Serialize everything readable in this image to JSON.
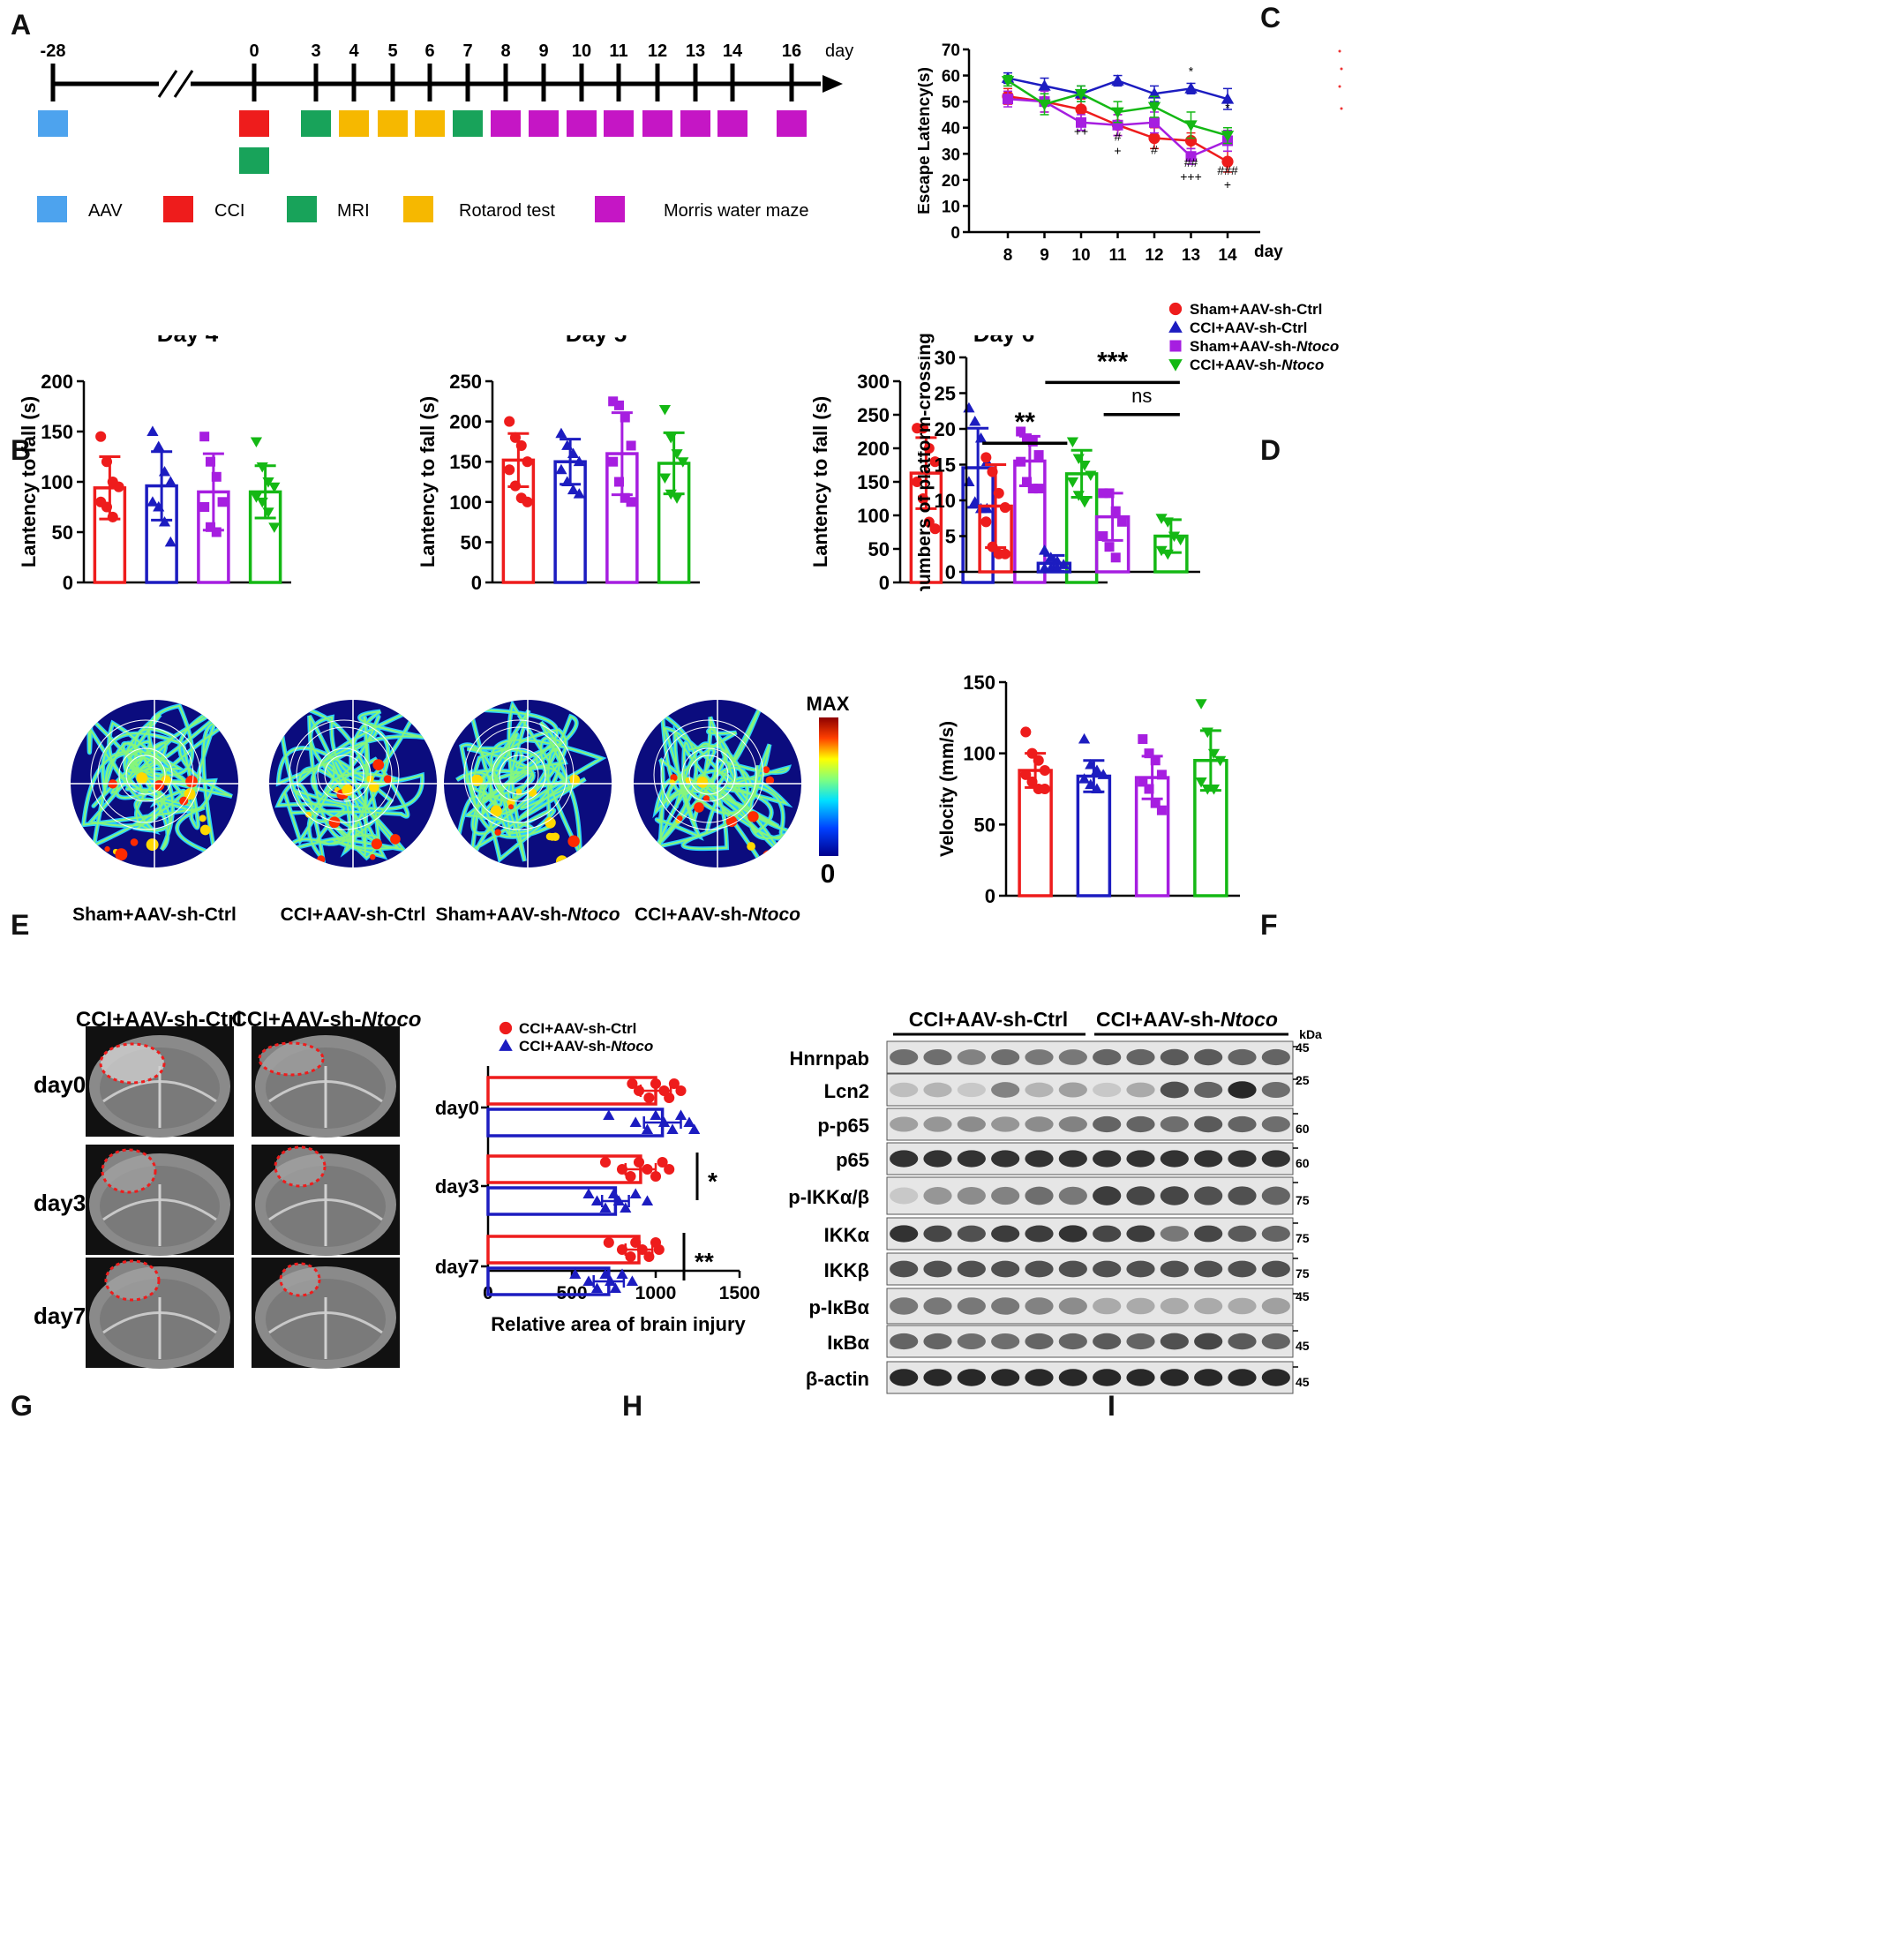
{
  "panels": {
    "A": {
      "label": "A",
      "unit": "day",
      "ticks": [
        "-28",
        "0",
        "3",
        "4",
        "5",
        "6",
        "7",
        "8",
        "9",
        "10",
        "11",
        "12",
        "13",
        "14",
        "16"
      ],
      "legend": [
        {
          "name": "AAV",
          "color": "#4da3ee"
        },
        {
          "name": "CCI",
          "color": "#ee1c1c"
        },
        {
          "name": "MRI",
          "color": "#18a35a"
        },
        {
          "name": "Rotarod test",
          "color": "#f6b800"
        },
        {
          "name": "Morris water maze",
          "color": "#c516c5"
        }
      ],
      "events": [
        {
          "day": "-28",
          "color": "#4da3ee"
        },
        {
          "day": "0",
          "color": "#ee1c1c"
        },
        {
          "day": "0",
          "color": "#18a35a",
          "row": 2
        },
        {
          "day": "3",
          "color": "#18a35a"
        },
        {
          "day": "4",
          "color": "#f6b800"
        },
        {
          "day": "5",
          "color": "#f6b800"
        },
        {
          "day": "6",
          "color": "#f6b800"
        },
        {
          "day": "7",
          "color": "#18a35a"
        },
        {
          "day": "8",
          "color": "#c516c5"
        },
        {
          "day": "9",
          "color": "#c516c5"
        },
        {
          "day": "10",
          "color": "#c516c5"
        },
        {
          "day": "11",
          "color": "#c516c5"
        },
        {
          "day": "12",
          "color": "#c516c5"
        },
        {
          "day": "13",
          "color": "#c516c5"
        },
        {
          "day": "14",
          "color": "#c516c5"
        },
        {
          "day": "16",
          "color": "#c516c5"
        }
      ]
    },
    "B": {
      "label": "B"
    },
    "C": {
      "label": "C"
    },
    "D": {
      "label": "D"
    },
    "E": {
      "label": "E",
      "scale_max": "MAX",
      "scale_min": "0",
      "groups": [
        "Sham+AAV-sh-Ctrl",
        "CCI+AAV-sh-Ctrl",
        "Sham+AAV-sh-",
        "CCI+AAV-sh-"
      ],
      "italic_suffix": [
        "",
        "",
        "Ntoco",
        "Ntoco"
      ]
    },
    "F": {
      "label": "F"
    },
    "G": {
      "label": "G",
      "col_headers": [
        "CCI+AAV-sh-Ctrl",
        "CCI+AAV-sh-"
      ],
      "col_italic": [
        "",
        "Ntoco"
      ],
      "rows": [
        "day0",
        "day3",
        "day7"
      ]
    },
    "H": {
      "label": "H"
    },
    "I": {
      "label": "I",
      "group_headers": [
        "CCI+AAV-sh-Ctrl",
        "CCI+AAV-sh-"
      ],
      "group_italic": [
        "",
        "Ntoco"
      ],
      "unit": "kDa",
      "blots": [
        {
          "name": "Hnrnpab",
          "kda": "45",
          "intensity": [
            0.55,
            0.55,
            0.45,
            0.55,
            0.5,
            0.5,
            0.6,
            0.6,
            0.65,
            0.65,
            0.6,
            0.6
          ]
        },
        {
          "name": "Lcn2",
          "kda": "25",
          "intensity": [
            0.15,
            0.2,
            0.1,
            0.45,
            0.2,
            0.3,
            0.1,
            0.25,
            0.7,
            0.6,
            0.9,
            0.55
          ]
        },
        {
          "name": "p-p65",
          "kda": "60",
          "intensity": [
            0.3,
            0.35,
            0.4,
            0.35,
            0.4,
            0.45,
            0.6,
            0.6,
            0.55,
            0.65,
            0.6,
            0.55
          ]
        },
        {
          "name": "p65",
          "kda": "60",
          "intensity": [
            0.85,
            0.85,
            0.85,
            0.85,
            0.85,
            0.85,
            0.85,
            0.85,
            0.85,
            0.85,
            0.85,
            0.85
          ]
        },
        {
          "name": "p-IKKα/β",
          "kda": "75",
          "intensity": [
            0.1,
            0.35,
            0.4,
            0.45,
            0.55,
            0.5,
            0.8,
            0.75,
            0.75,
            0.7,
            0.7,
            0.6
          ]
        },
        {
          "name": "IKKα",
          "kda": "75",
          "intensity": [
            0.85,
            0.75,
            0.7,
            0.8,
            0.8,
            0.85,
            0.75,
            0.8,
            0.5,
            0.75,
            0.65,
            0.6
          ]
        },
        {
          "name": "IKKβ",
          "kda": "75",
          "intensity": [
            0.7,
            0.7,
            0.7,
            0.7,
            0.7,
            0.7,
            0.7,
            0.7,
            0.7,
            0.7,
            0.7,
            0.7
          ]
        },
        {
          "name": "p-IκBα",
          "kda": "45",
          "intensity": [
            0.5,
            0.5,
            0.5,
            0.5,
            0.45,
            0.4,
            0.25,
            0.25,
            0.25,
            0.25,
            0.25,
            0.3
          ]
        },
        {
          "name": "IκBα",
          "kda": "45",
          "intensity": [
            0.6,
            0.6,
            0.55,
            0.55,
            0.6,
            0.6,
            0.65,
            0.6,
            0.7,
            0.75,
            0.65,
            0.6
          ]
        },
        {
          "name": "β-actin",
          "kda": "45",
          "intensity": [
            0.9,
            0.9,
            0.9,
            0.9,
            0.9,
            0.9,
            0.9,
            0.9,
            0.9,
            0.9,
            0.9,
            0.9
          ]
        }
      ]
    }
  },
  "colors": {
    "sham_ctrl": "#ee1c1c",
    "cci_ctrl": "#1c1cc0",
    "sham_nt": "#a61ee0",
    "cci_nt": "#14b814"
  },
  "chart_data": [
    {
      "id": "B-day4",
      "type": "bar",
      "title": "Day 4",
      "ylabel": "Lantency to fall (s)",
      "ylim": [
        0,
        200
      ],
      "yticks": [
        0,
        50,
        100,
        150,
        200
      ],
      "values": [
        94,
        96,
        90,
        90
      ],
      "errors": [
        31,
        34,
        38,
        26
      ],
      "points": [
        [
          145,
          120,
          100,
          95,
          80,
          75,
          65
        ],
        [
          150,
          135,
          110,
          100,
          80,
          75,
          60,
          40
        ],
        [
          145,
          120,
          105,
          80,
          75,
          55,
          50
        ],
        [
          140,
          115,
          100,
          95,
          85,
          80,
          70,
          55
        ]
      ],
      "colors": [
        "#ee1c1c",
        "#1c1cc0",
        "#a61ee0",
        "#14b814"
      ],
      "markers": [
        "circle",
        "triangle",
        "square",
        "invtriangle"
      ]
    },
    {
      "id": "B-day5",
      "type": "bar",
      "title": "Day 5",
      "ylabel": "Lantency to fall (s)",
      "ylim": [
        0,
        250
      ],
      "yticks": [
        0,
        50,
        100,
        150,
        200,
        250
      ],
      "values": [
        152,
        150,
        160,
        148
      ],
      "errors": [
        33,
        28,
        51,
        38
      ],
      "points": [
        [
          200,
          180,
          170,
          150,
          140,
          120,
          105,
          100
        ],
        [
          185,
          170,
          160,
          150,
          140,
          125,
          115,
          110
        ],
        [
          225,
          220,
          205,
          170,
          150,
          125,
          105,
          100
        ],
        [
          215,
          180,
          160,
          150,
          130,
          110,
          105
        ]
      ],
      "colors": [
        "#ee1c1c",
        "#1c1cc0",
        "#a61ee0",
        "#14b814"
      ],
      "markers": [
        "circle",
        "triangle",
        "square",
        "invtriangle"
      ]
    },
    {
      "id": "B-day6",
      "type": "bar",
      "title": "Day 6",
      "ylabel": "Lantency to fall (s)",
      "ylim": [
        0,
        300
      ],
      "yticks": [
        0,
        50,
        100,
        150,
        200,
        250,
        300
      ],
      "values": [
        163,
        171,
        181,
        162
      ],
      "errors": [
        53,
        59,
        37,
        35
      ],
      "points": [
        [
          230,
          230,
          200,
          180,
          150,
          125,
          90,
          80
        ],
        [
          260,
          240,
          215,
          180,
          150,
          120,
          110,
          110
        ],
        [
          225,
          215,
          210,
          190,
          180,
          150,
          140,
          140
        ],
        [
          210,
          185,
          175,
          160,
          150,
          130,
          120
        ]
      ],
      "colors": [
        "#ee1c1c",
        "#1c1cc0",
        "#a61ee0",
        "#14b814"
      ],
      "markers": [
        "circle",
        "triangle",
        "square",
        "invtriangle"
      ]
    },
    {
      "id": "C",
      "type": "line",
      "xlabel": "day",
      "ylabel": "Escape Latency(s)",
      "x": [
        8,
        9,
        10,
        11,
        12,
        13,
        14
      ],
      "ylim": [
        0,
        70
      ],
      "yticks": [
        0,
        10,
        20,
        30,
        40,
        50,
        60,
        70
      ],
      "series": [
        {
          "name": "Sham+AAV-sh-Ctrl",
          "color": "#ee1c1c",
          "marker": "circle",
          "values": [
            52,
            50,
            47,
            41,
            36,
            35,
            27
          ],
          "errors": [
            3,
            4,
            4,
            4,
            4,
            3,
            4
          ]
        },
        {
          "name": "CCI+AAV-sh-Ctrl",
          "color": "#1c1cc0",
          "marker": "triangle",
          "values": [
            59,
            56,
            53,
            58,
            53,
            55,
            51
          ],
          "errors": [
            2,
            3,
            3,
            2,
            3,
            2,
            4
          ]
        },
        {
          "name": "Sham+AAV-sh-Ntoco",
          "color": "#a61ee0",
          "marker": "square",
          "values": [
            51,
            50,
            42,
            41,
            42,
            29,
            35
          ],
          "errors": [
            3,
            4,
            3,
            4,
            4,
            3,
            4
          ]
        },
        {
          "name": "CCI+AAV-sh-Ntoco",
          "color": "#14b814",
          "marker": "invtriangle",
          "values": [
            58,
            49,
            53,
            46,
            48,
            41,
            37
          ],
          "errors": [
            2,
            4,
            3,
            4,
            4,
            5,
            3
          ]
        }
      ],
      "annotations": [
        {
          "x": 10,
          "lines": [
            "++"
          ],
          "y": 37
        },
        {
          "x": 11,
          "lines": [
            "#",
            "+"
          ],
          "y": 35
        },
        {
          "x": 12,
          "lines": [
            "#"
          ],
          "y": 30
        },
        {
          "x": 13,
          "lines": [
            "*"
          ],
          "y": 60
        },
        {
          "x": 13,
          "lines": [
            "##",
            "+++"
          ],
          "y": 25
        },
        {
          "x": 14,
          "lines": [
            "*"
          ],
          "y": 46
        },
        {
          "x": 14,
          "lines": [
            "###",
            "+"
          ],
          "y": 22
        }
      ]
    },
    {
      "id": "D",
      "type": "bar",
      "ylabel": "numbers of platform-crossing",
      "ylim": [
        0,
        30
      ],
      "yticks": [
        0,
        5,
        10,
        15,
        20,
        25,
        30
      ],
      "values": [
        9.2,
        1.2,
        7.7,
        5
      ],
      "errors": [
        5.8,
        1.1,
        3.3,
        2.3
      ],
      "points": [
        [
          16,
          14,
          11,
          9,
          7,
          3.5,
          2.5,
          2.5
        ],
        [
          3,
          2,
          1.5,
          1,
          0.5,
          0.5,
          0.5
        ],
        [
          11,
          11,
          8.5,
          7,
          5,
          3.5,
          2
        ],
        [
          7.5,
          7,
          5,
          4.5,
          3,
          2.5
        ]
      ],
      "colors": [
        "#ee1c1c",
        "#1c1cc0",
        "#a61ee0",
        "#14b814"
      ],
      "markers": [
        "circle",
        "triangle",
        "square",
        "invtriangle"
      ],
      "legend": [
        "Sham+AAV-sh-Ctrl",
        "CCI+AAV-sh-Ctrl",
        "Sham+AAV-sh-",
        "CCI+AAV-sh-"
      ],
      "legend_italic": [
        "",
        "",
        "Ntoco",
        "Ntoco"
      ],
      "significance": [
        {
          "from": 0,
          "to": 1,
          "y": 18,
          "label": "**"
        },
        {
          "from": 1,
          "to": 3,
          "y": 26.5,
          "label": "***"
        },
        {
          "from": 2,
          "to": 3,
          "y": 22,
          "label": "ns"
        }
      ]
    },
    {
      "id": "F",
      "type": "bar",
      "ylabel": "Velocity (mm/s)",
      "ylim": [
        0,
        150
      ],
      "yticks": [
        0,
        50,
        100,
        150
      ],
      "values": [
        88,
        84,
        83,
        95
      ],
      "errors": [
        12,
        11,
        15,
        21
      ],
      "points": [
        [
          115,
          100,
          95,
          88,
          85,
          80,
          75,
          75
        ],
        [
          110,
          92,
          88,
          85,
          82,
          78,
          75
        ],
        [
          110,
          100,
          95,
          85,
          80,
          75,
          65,
          60
        ],
        [
          135,
          115,
          100,
          95,
          80,
          75,
          75
        ]
      ],
      "colors": [
        "#ee1c1c",
        "#1c1cc0",
        "#a61ee0",
        "#14b814"
      ],
      "markers": [
        "circle",
        "triangle",
        "square",
        "invtriangle"
      ]
    },
    {
      "id": "H",
      "type": "bar",
      "orientation": "horizontal",
      "xlabel": "Relative area of brain injury",
      "xlim": [
        0,
        1500
      ],
      "xticks": [
        0,
        500,
        1000,
        1500
      ],
      "categories": [
        "day0",
        "day3",
        "day7"
      ],
      "series": [
        {
          "name": "CCI+AAV-sh-Ctrl",
          "color": "#ee1c1c",
          "marker": "circle",
          "values": [
            1000,
            910,
            900
          ],
          "errors": [
            90,
            90,
            80
          ],
          "points": [
            [
              860,
              900,
              960,
              1000,
              1050,
              1080,
              1110,
              1150
            ],
            [
              700,
              800,
              850,
              900,
              950,
              1000,
              1040,
              1080
            ],
            [
              720,
              800,
              850,
              880,
              920,
              960,
              1000,
              1020
            ]
          ]
        },
        {
          "name": "CCI+AAV-sh-",
          "name_italic": "Ntoco",
          "color": "#1c1cc0",
          "marker": "triangle",
          "values": [
            1040,
            760,
            720
          ],
          "errors": [
            110,
            80,
            90
          ],
          "points": [
            [
              720,
              880,
              950,
              1000,
              1050,
              1100,
              1150,
              1200,
              1230
            ],
            [
              600,
              650,
              700,
              750,
              780,
              820,
              880,
              950
            ],
            [
              520,
              600,
              650,
              700,
              730,
              760,
              800,
              860
            ]
          ]
        }
      ],
      "significance": [
        {
          "category": "day3",
          "label": "*"
        },
        {
          "category": "day7",
          "label": "**"
        }
      ]
    }
  ]
}
